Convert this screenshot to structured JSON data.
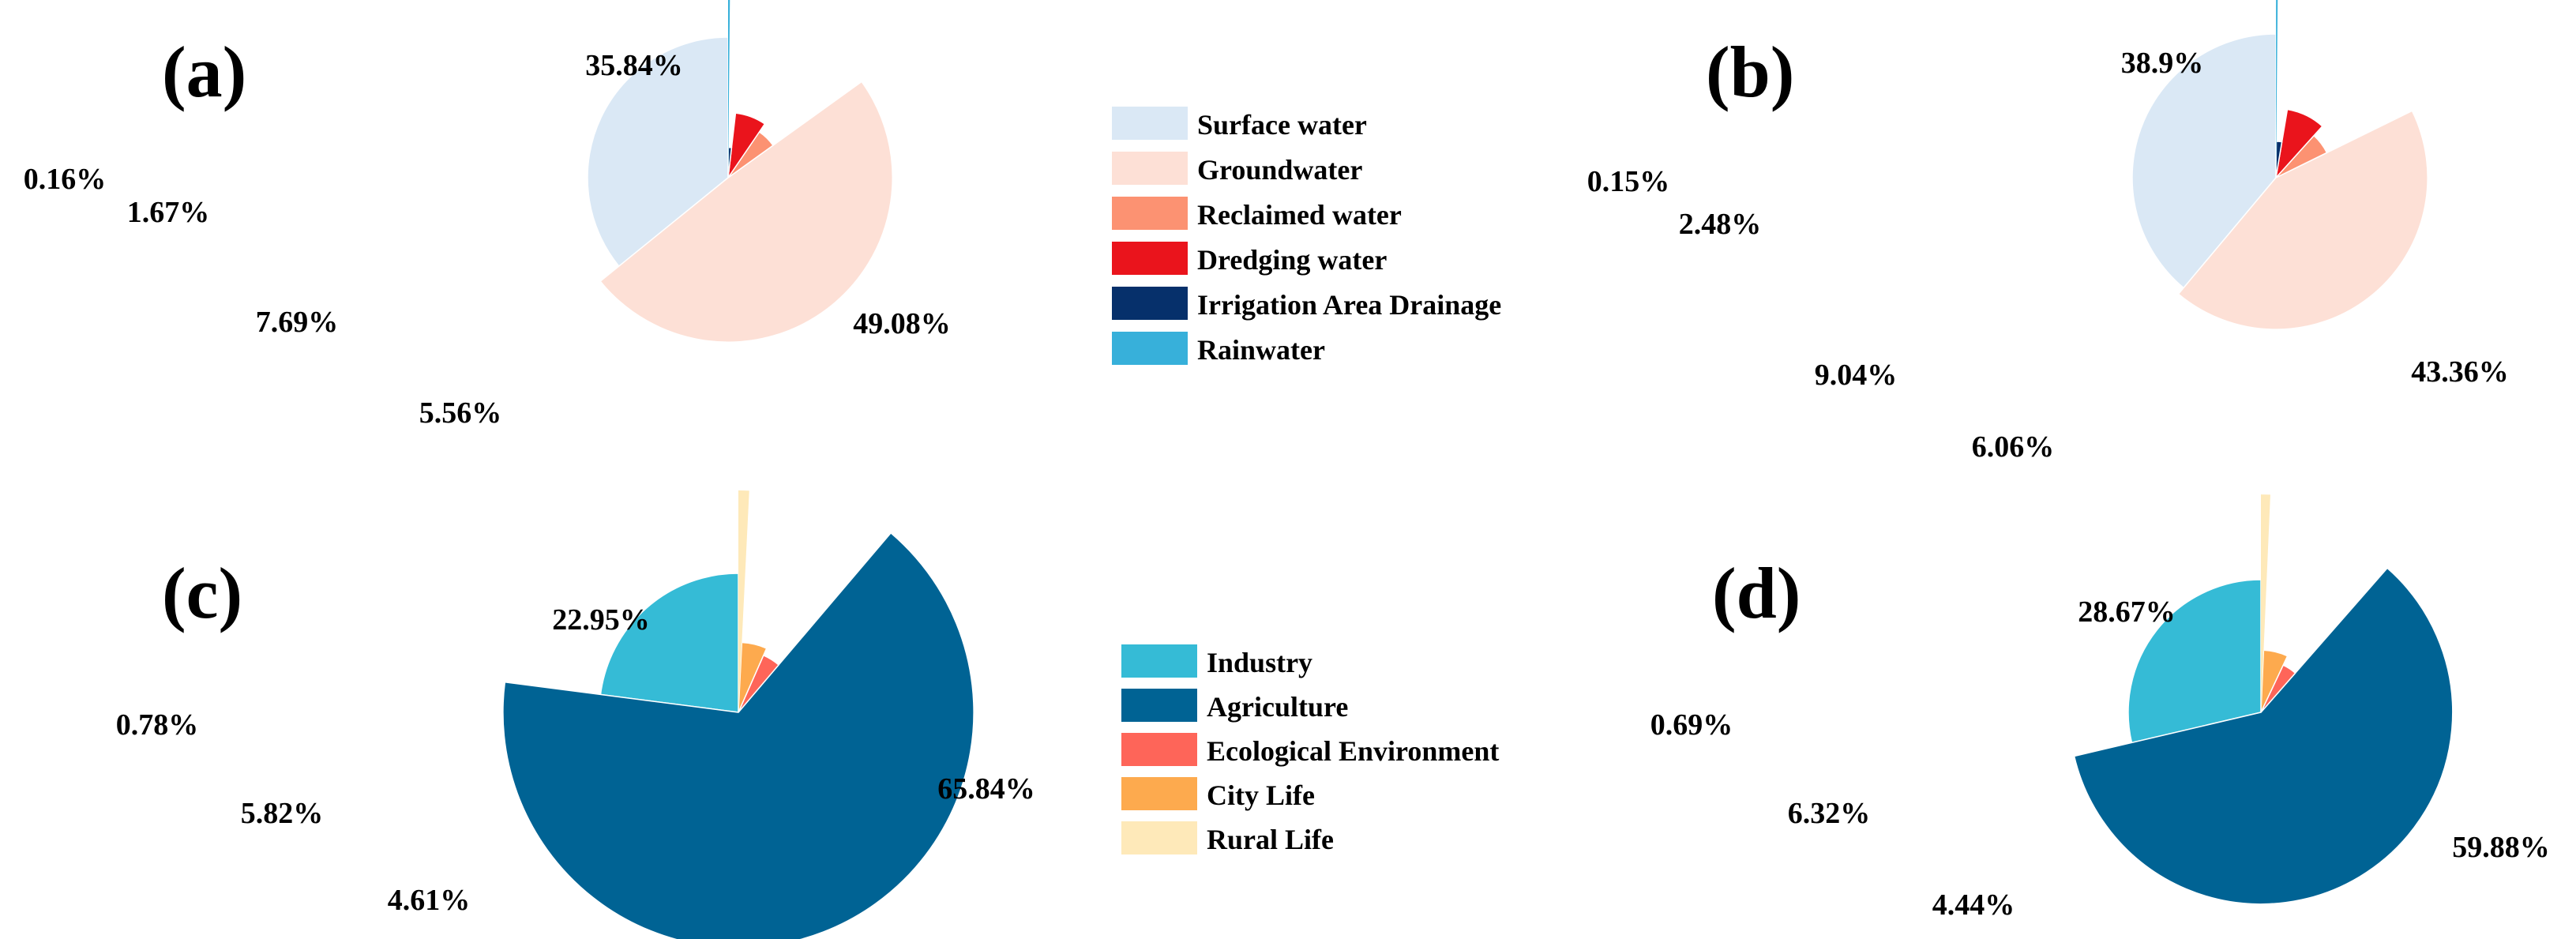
{
  "colors": {
    "surface_water": "#dae8f5",
    "groundwater": "#fde0d6",
    "reclaimed_water": "#fc9272",
    "dredging_water": "#ea141c",
    "irrigation_drainage": "#06306b",
    "rainwater": "#37b0da",
    "industry": "#35bbd6",
    "agriculture": "#006394",
    "ecological_environment": "#fe6559",
    "city_life": "#fdaa4e",
    "rural_life": "#fee9b9"
  },
  "legends": {
    "supply": [
      "Surface water",
      "Groundwater",
      "Reclaimed water",
      "Dredging water",
      "Irrigation Area Drainage",
      "Rainwater"
    ],
    "demand": [
      "Industry",
      "Agriculture",
      "Ecological Environment",
      "City Life",
      "Rural Life"
    ]
  },
  "chart_data": [
    {
      "type": "pie",
      "style": "rose (polar area)",
      "panel": "(a)",
      "categories": [
        "Surface water",
        "Groundwater",
        "Reclaimed water",
        "Dredging water",
        "Irrigation Area Drainage",
        "Rainwater"
      ],
      "values": [
        35.84,
        49.08,
        5.56,
        7.69,
        1.67,
        0.16
      ],
      "labels": [
        "35.84%",
        "49.08%",
        "5.56%",
        "7.69%",
        "1.67%",
        "0.16%"
      ],
      "colors": [
        "#dae8f5",
        "#fde0d6",
        "#fc9272",
        "#ea141c",
        "#06306b",
        "#37b0da"
      ]
    },
    {
      "type": "pie",
      "style": "rose (polar area)",
      "panel": "(b)",
      "categories": [
        "Surface water",
        "Groundwater",
        "Reclaimed water",
        "Dredging water",
        "Irrigation Area Drainage",
        "Rainwater"
      ],
      "values": [
        38.9,
        43.36,
        6.06,
        9.04,
        2.48,
        0.15
      ],
      "labels": [
        "38.9%",
        "43.36%",
        "6.06%",
        "9.04%",
        "2.48%",
        "0.15%"
      ],
      "colors": [
        "#dae8f5",
        "#fde0d6",
        "#fc9272",
        "#ea141c",
        "#06306b",
        "#37b0da"
      ]
    },
    {
      "type": "pie",
      "style": "rose (polar area)",
      "panel": "(c)",
      "categories": [
        "Industry",
        "Agriculture",
        "Ecological Environment",
        "City Life",
        "Rural Life"
      ],
      "values": [
        22.95,
        65.84,
        4.61,
        5.82,
        0.78
      ],
      "labels": [
        "22.95%",
        "65.84%",
        "4.61%",
        "5.82%",
        "0.78%"
      ],
      "colors": [
        "#35bbd6",
        "#006394",
        "#fe6559",
        "#fdaa4e",
        "#fee9b9"
      ]
    },
    {
      "type": "pie",
      "style": "rose (polar area)",
      "panel": "(d)",
      "categories": [
        "Industry",
        "Agriculture",
        "Ecological Environment",
        "City Life",
        "Rural Life"
      ],
      "values": [
        28.67,
        59.88,
        4.44,
        6.32,
        0.69
      ],
      "labels": [
        "28.67%",
        "59.88%",
        "4.44%",
        "6.32%",
        "0.69%"
      ],
      "colors": [
        "#35bbd6",
        "#006394",
        "#fe6559",
        "#fdaa4e",
        "#fee9b9"
      ]
    }
  ]
}
